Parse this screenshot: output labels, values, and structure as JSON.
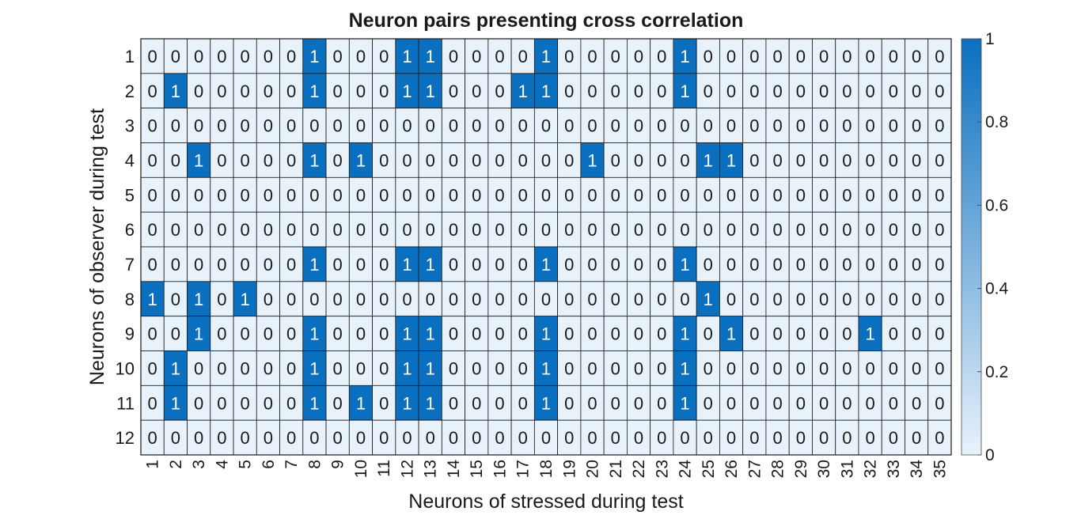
{
  "chart_data": {
    "type": "heatmap",
    "title": "Neuron pairs presenting cross correlation",
    "xlabel": "Neurons of stressed during test",
    "ylabel": "Neurons of observer during test",
    "x": [
      "1",
      "2",
      "3",
      "4",
      "5",
      "6",
      "7",
      "8",
      "9",
      "10",
      "11",
      "12",
      "13",
      "14",
      "15",
      "16",
      "17",
      "18",
      "19",
      "20",
      "21",
      "22",
      "23",
      "24",
      "25",
      "26",
      "27",
      "28",
      "29",
      "30",
      "31",
      "32",
      "33",
      "34",
      "35"
    ],
    "y": [
      "1",
      "2",
      "3",
      "4",
      "5",
      "6",
      "7",
      "8",
      "9",
      "10",
      "11",
      "12"
    ],
    "values": [
      [
        0,
        0,
        0,
        0,
        0,
        0,
        0,
        1,
        0,
        0,
        0,
        1,
        1,
        0,
        0,
        0,
        0,
        1,
        0,
        0,
        0,
        0,
        0,
        1,
        0,
        0,
        0,
        0,
        0,
        0,
        0,
        0,
        0,
        0,
        0
      ],
      [
        0,
        1,
        0,
        0,
        0,
        0,
        0,
        1,
        0,
        0,
        0,
        1,
        1,
        0,
        0,
        0,
        1,
        1,
        0,
        0,
        0,
        0,
        0,
        1,
        0,
        0,
        0,
        0,
        0,
        0,
        0,
        0,
        0,
        0,
        0
      ],
      [
        0,
        0,
        0,
        0,
        0,
        0,
        0,
        0,
        0,
        0,
        0,
        0,
        0,
        0,
        0,
        0,
        0,
        0,
        0,
        0,
        0,
        0,
        0,
        0,
        0,
        0,
        0,
        0,
        0,
        0,
        0,
        0,
        0,
        0,
        0
      ],
      [
        0,
        0,
        1,
        0,
        0,
        0,
        0,
        1,
        0,
        1,
        0,
        0,
        0,
        0,
        0,
        0,
        0,
        0,
        0,
        1,
        0,
        0,
        0,
        0,
        1,
        1,
        0,
        0,
        0,
        0,
        0,
        0,
        0,
        0,
        0
      ],
      [
        0,
        0,
        0,
        0,
        0,
        0,
        0,
        0,
        0,
        0,
        0,
        0,
        0,
        0,
        0,
        0,
        0,
        0,
        0,
        0,
        0,
        0,
        0,
        0,
        0,
        0,
        0,
        0,
        0,
        0,
        0,
        0,
        0,
        0,
        0
      ],
      [
        0,
        0,
        0,
        0,
        0,
        0,
        0,
        0,
        0,
        0,
        0,
        0,
        0,
        0,
        0,
        0,
        0,
        0,
        0,
        0,
        0,
        0,
        0,
        0,
        0,
        0,
        0,
        0,
        0,
        0,
        0,
        0,
        0,
        0,
        0
      ],
      [
        0,
        0,
        0,
        0,
        0,
        0,
        0,
        1,
        0,
        0,
        0,
        1,
        1,
        0,
        0,
        0,
        0,
        1,
        0,
        0,
        0,
        0,
        0,
        1,
        0,
        0,
        0,
        0,
        0,
        0,
        0,
        0,
        0,
        0,
        0
      ],
      [
        1,
        0,
        1,
        0,
        1,
        0,
        0,
        0,
        0,
        0,
        0,
        0,
        0,
        0,
        0,
        0,
        0,
        0,
        0,
        0,
        0,
        0,
        0,
        0,
        1,
        0,
        0,
        0,
        0,
        0,
        0,
        0,
        0,
        0,
        0
      ],
      [
        0,
        0,
        1,
        0,
        0,
        0,
        0,
        1,
        0,
        0,
        0,
        1,
        1,
        0,
        0,
        0,
        0,
        1,
        0,
        0,
        0,
        0,
        0,
        1,
        0,
        1,
        0,
        0,
        0,
        0,
        0,
        1,
        0,
        0,
        0
      ],
      [
        0,
        1,
        0,
        0,
        0,
        0,
        0,
        1,
        0,
        0,
        0,
        1,
        1,
        0,
        0,
        0,
        0,
        1,
        0,
        0,
        0,
        0,
        0,
        1,
        0,
        0,
        0,
        0,
        0,
        0,
        0,
        0,
        0,
        0,
        0
      ],
      [
        0,
        1,
        0,
        0,
        0,
        0,
        0,
        1,
        0,
        1,
        0,
        1,
        1,
        0,
        0,
        0,
        0,
        1,
        0,
        0,
        0,
        0,
        0,
        1,
        0,
        0,
        0,
        0,
        0,
        0,
        0,
        0,
        0,
        0,
        0
      ],
      [
        0,
        0,
        0,
        0,
        0,
        0,
        0,
        0,
        0,
        0,
        0,
        0,
        0,
        0,
        0,
        0,
        0,
        0,
        0,
        0,
        0,
        0,
        0,
        0,
        0,
        0,
        0,
        0,
        0,
        0,
        0,
        0,
        0,
        0,
        0
      ]
    ],
    "colorbar": {
      "range": [
        0,
        1
      ],
      "ticks": [
        "0",
        "0.2",
        "0.4",
        "0.6",
        "0.8",
        "1"
      ],
      "low_color": "#e8f2fb",
      "high_color": "#0b6fbf"
    },
    "grid": true,
    "cell_labels": true,
    "colors": {
      "cell_low": "#e8f2fb",
      "cell_high": "#0b6fbf",
      "text_on_low": "#1a1a1a",
      "text_on_high": "#ffffff",
      "grid_line": "#1a1a1a"
    }
  }
}
